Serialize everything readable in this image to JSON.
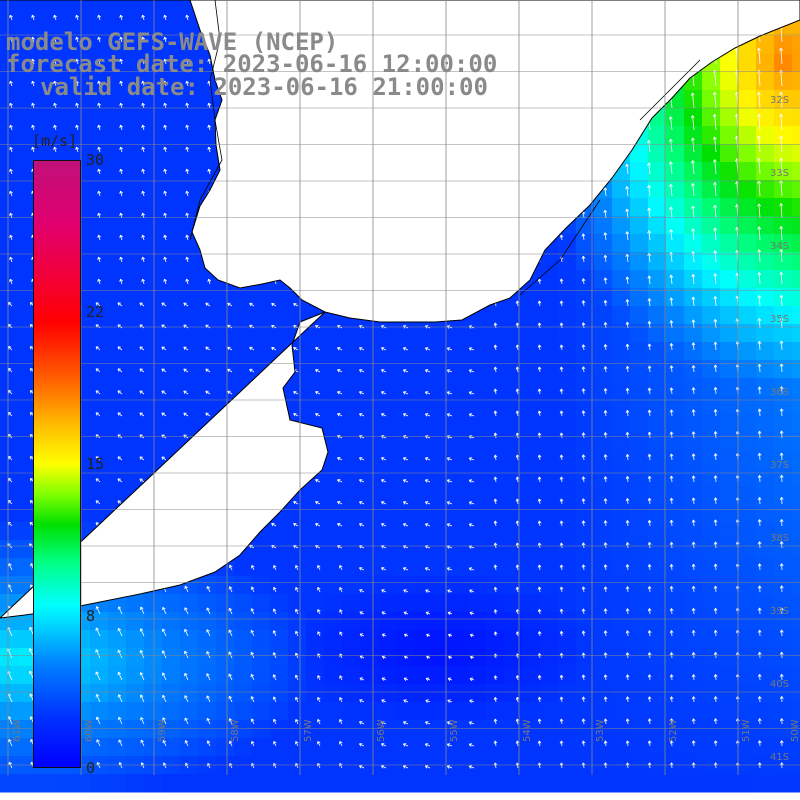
{
  "title": {
    "line1": "modelo GEFS-WAVE (NCEP)",
    "line2": "forecast date: 2023-06-16 12:00:00",
    "line3": "valid date: 2023-06-16 21:00:00"
  },
  "colorbar": {
    "unit": "[m/s]",
    "ticks": [
      "30",
      "22",
      "15",
      "8",
      "0"
    ],
    "tick_values": [
      30,
      22,
      15,
      8,
      0
    ],
    "range": [
      0,
      30
    ],
    "colors": [
      "#0000ff",
      "#00ffff",
      "#00e000",
      "#ffff00",
      "#ff0000",
      "#c0107a"
    ]
  },
  "map": {
    "land_color": "#ffffff",
    "coast_color": "#000000",
    "grid_color": "#888888",
    "lon_labels": [
      "61W",
      "60W",
      "59W",
      "58W",
      "57W",
      "56W",
      "55W",
      "54W",
      "53W",
      "52W",
      "51W",
      "50W"
    ],
    "lat_labels": [
      "32S",
      "33S",
      "34S",
      "35S",
      "36S",
      "37S",
      "38S",
      "39S",
      "40S",
      "41S"
    ]
  }
}
